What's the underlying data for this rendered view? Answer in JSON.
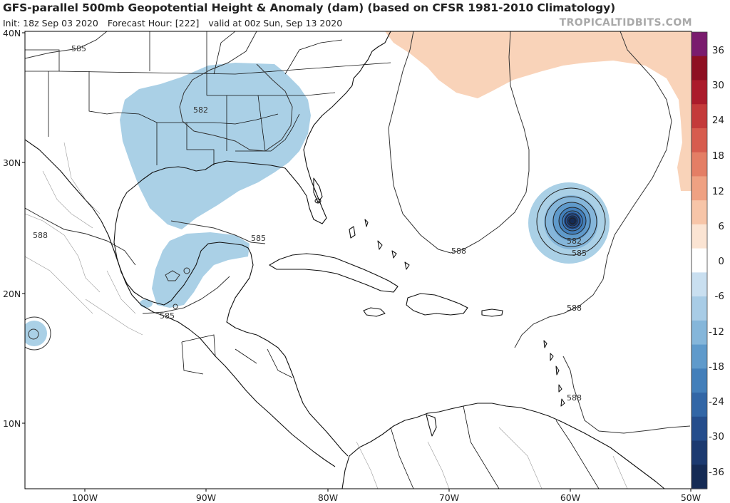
{
  "header": {
    "title": "GFS-parallel 500mb Geopotential Height & Anomaly (dam) (based on CFSR 1981-2010 Climatology)",
    "init": "Init: 18z Sep 03 2020",
    "forecast_hour": "Forecast Hour: [222]",
    "valid": "valid at 00z Sun, Sep 13 2020",
    "site": "TROPICALTIDBITS.COM"
  },
  "axes": {
    "lat_labels": [
      "40N",
      "30N",
      "20N",
      "10N"
    ],
    "lon_labels": [
      "100W",
      "90W",
      "80W",
      "70W",
      "60W",
      "50W"
    ]
  },
  "contour_labels": [
    "585",
    "582",
    "588",
    "585",
    "585",
    "588",
    "582",
    "585",
    "588",
    "588"
  ],
  "colorbar": {
    "ticks": [
      "36",
      "30",
      "24",
      "18",
      "12",
      "6",
      "0",
      "-6",
      "-12",
      "-18",
      "-24",
      "-30",
      "-36"
    ],
    "colors": [
      "#7a1c6e",
      "#8e1022",
      "#ab1b2b",
      "#c43a3a",
      "#d75c4e",
      "#e47e65",
      "#efa182",
      "#f7c5a8",
      "#fbe4d3",
      "#ffffff",
      "#c9dff0",
      "#a8cce6",
      "#85b6da",
      "#5f9acb",
      "#437fba",
      "#3266a6",
      "#254d8c",
      "#1c3a70",
      "#152b55"
    ]
  },
  "colors": {
    "negative_anomaly": "#aad0e6",
    "positive_anomaly": "#f9d3b9",
    "coastline": "#111111",
    "contour": "#333333",
    "border": "#888888"
  }
}
